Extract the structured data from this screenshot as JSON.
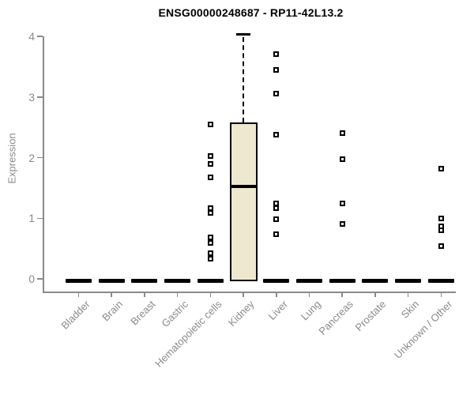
{
  "chart_data": {
    "type": "boxplot",
    "title": "ENSG00000248687 - RP11-42L13.2",
    "xlabel": "",
    "ylabel": "Expression",
    "ylim": [
      0,
      4
    ],
    "yticks": [
      "0",
      "1",
      "2",
      "3",
      "4"
    ],
    "grid": false,
    "legend": "none",
    "categories": [
      "Bladder",
      "Brain",
      "Breast",
      "Gastric",
      "Hematopoietic cells",
      "Kidney",
      "Liver",
      "Lung",
      "Pancreas",
      "Prostate",
      "Skin",
      "Unknown / Other"
    ],
    "boxes": [
      {
        "category": "Bladder",
        "q1": 0,
        "median": 0,
        "q3": 0,
        "whisker_low": 0,
        "whisker_high": 0,
        "collapsed": true
      },
      {
        "category": "Brain",
        "q1": 0,
        "median": 0,
        "q3": 0,
        "whisker_low": 0,
        "whisker_high": 0,
        "collapsed": true
      },
      {
        "category": "Breast",
        "q1": 0,
        "median": 0,
        "q3": 0,
        "whisker_low": 0,
        "whisker_high": 0,
        "collapsed": true
      },
      {
        "category": "Gastric",
        "q1": 0,
        "median": 0,
        "q3": 0,
        "whisker_low": 0,
        "whisker_high": 0,
        "collapsed": true
      },
      {
        "category": "Hematopoietic cells",
        "q1": 0,
        "median": 0,
        "q3": 0,
        "whisker_low": 0,
        "whisker_high": 0,
        "collapsed": true
      },
      {
        "category": "Kidney",
        "q1": 0,
        "median": 1.52,
        "q3": 2.58,
        "whisker_low": 0,
        "whisker_high": 4.03,
        "collapsed": false
      },
      {
        "category": "Liver",
        "q1": 0,
        "median": 0,
        "q3": 0,
        "whisker_low": 0,
        "whisker_high": 0,
        "collapsed": true
      },
      {
        "category": "Lung",
        "q1": 0,
        "median": 0,
        "q3": 0,
        "whisker_low": 0,
        "whisker_high": 0,
        "collapsed": true
      },
      {
        "category": "Pancreas",
        "q1": 0,
        "median": 0,
        "q3": 0,
        "whisker_low": 0,
        "whisker_high": 0,
        "collapsed": true
      },
      {
        "category": "Prostate",
        "q1": 0,
        "median": 0,
        "q3": 0,
        "whisker_low": 0,
        "whisker_high": 0,
        "collapsed": true
      },
      {
        "category": "Skin",
        "q1": 0,
        "median": 0,
        "q3": 0,
        "whisker_low": 0,
        "whisker_high": 0,
        "collapsed": true
      },
      {
        "category": "Unknown / Other",
        "q1": 0,
        "median": 0,
        "q3": 0,
        "whisker_low": 0,
        "whisker_high": 0,
        "collapsed": true
      }
    ],
    "outliers": [
      {
        "category": "Hematopoietic cells",
        "values": [
          2.55,
          2.03,
          1.9,
          1.67,
          1.16,
          1.09,
          0.68,
          0.59,
          0.42,
          0.33
        ]
      },
      {
        "category": "Liver",
        "values": [
          3.71,
          3.45,
          3.05,
          2.38,
          1.24,
          1.17,
          0.98,
          0.73
        ]
      },
      {
        "category": "Pancreas",
        "values": [
          2.41,
          1.97,
          1.25,
          0.9
        ]
      },
      {
        "category": "Unknown / Other",
        "values": [
          1.82,
          1.0,
          0.87,
          0.8,
          0.54
        ]
      }
    ],
    "marker": "open-square",
    "colors": {
      "box_fill": "#ede8cf",
      "box_border": "#000000",
      "median": "#000000",
      "axis": "#8a8a8a",
      "tick_labels": "#8a8a8a",
      "title": "#000000",
      "outlier": "#000000",
      "background": "#ffffff"
    }
  }
}
